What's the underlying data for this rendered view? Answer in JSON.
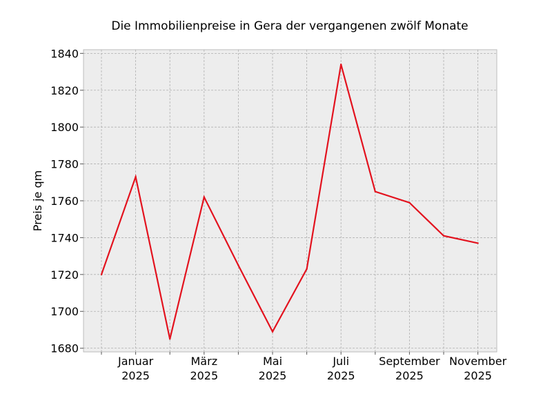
{
  "chart_data": {
    "type": "line",
    "title": "Die Immobilienpreise in Gera der vergangenen zwölf Monate",
    "xlabel": "",
    "ylabel": "Preis je qm",
    "ylim": [
      1678,
      1842
    ],
    "y_ticks": [
      1680,
      1700,
      1720,
      1740,
      1760,
      1780,
      1800,
      1820,
      1840
    ],
    "x_ticks": [
      {
        "month": "Januar",
        "year": "2025"
      },
      {
        "month": "März",
        "year": "2025"
      },
      {
        "month": "Mai",
        "year": "2025"
      },
      {
        "month": "Juli",
        "year": "2025"
      },
      {
        "month": "September",
        "year": "2025"
      },
      {
        "month": "November",
        "year": "2025"
      }
    ],
    "grid": true,
    "series": [
      {
        "color": "#e3121e",
        "x": [
          "2024-12",
          "2025-01",
          "2025-02",
          "2025-03",
          "2025-04",
          "2025-05",
          "2025-06",
          "2025-07",
          "2025-08",
          "2025-09",
          "2025-10",
          "2025-11"
        ],
        "values": [
          1720,
          1773,
          1685,
          1762,
          1725,
          1689,
          1723,
          1834,
          1765,
          1759,
          1741,
          1737
        ]
      }
    ]
  }
}
